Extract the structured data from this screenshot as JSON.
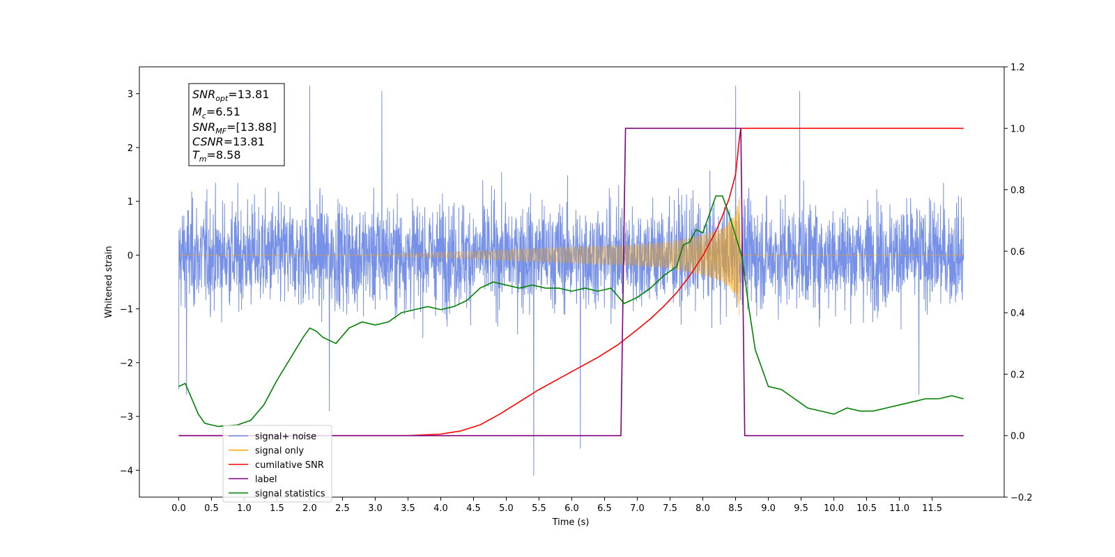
{
  "chart_data": {
    "type": "line",
    "xlabel": "Time (s)",
    "ylabel_left": "Whitened strain",
    "ylabel_right": "",
    "xlim": [
      -0.6,
      12.6
    ],
    "ylim_left": [
      -4.5,
      3.5
    ],
    "ylim_right": [
      -0.2,
      1.2
    ],
    "x_ticks": [
      "0.0",
      "0.5",
      "1.0",
      "1.5",
      "2.0",
      "2.5",
      "3.0",
      "3.5",
      "4.0",
      "4.5",
      "5.0",
      "5.5",
      "6.0",
      "6.5",
      "7.0",
      "7.5",
      "8.0",
      "8.5",
      "9.0",
      "9.5",
      "10.0",
      "10.5",
      "11.0",
      "11.5"
    ],
    "y_left_ticks": [
      "3",
      "2",
      "1",
      "0",
      "−1",
      "−2",
      "−3",
      "−4"
    ],
    "y_right_ticks": [
      "1.2",
      "1.0",
      "0.8",
      "0.6",
      "0.4",
      "0.2",
      "0.0",
      "−0.2"
    ],
    "grid": false,
    "legend_position": "lower-left",
    "colors": {
      "noise": "#6f8be6",
      "signal": "#ffa500",
      "snr": "#ff0000",
      "label": "#800080",
      "stats": "#008000"
    },
    "info_box": {
      "snr_opt_label": "SNR",
      "snr_opt_sub": "opt",
      "snr_opt_value": "=13.81",
      "mc_label": "M",
      "mc_sub": "c",
      "mc_value": "=6.51",
      "snr_mf_label": "SNR",
      "snr_mf_sub": "MF",
      "snr_mf_value": "=[13.88]",
      "csnr_label": "CSNR",
      "csnr_value": "=13.81",
      "tm_label": "T",
      "tm_sub": "m",
      "tm_value": "=8.58"
    },
    "series": [
      {
        "name": "signal+ noise",
        "axis": "left",
        "x_range": [
          0,
          11.98
        ],
        "amplitude_rms": 0.6,
        "spikes": [
          [
            0.0,
            -2.5
          ],
          [
            0.12,
            -2.6
          ],
          [
            2.0,
            3.15
          ],
          [
            2.3,
            -2.9
          ],
          [
            3.1,
            3.05
          ],
          [
            5.42,
            -4.1
          ],
          [
            6.13,
            -3.6
          ],
          [
            8.5,
            3.15
          ],
          [
            9.48,
            3.05
          ],
          [
            11.3,
            -2.6
          ]
        ]
      },
      {
        "name": "signal only",
        "axis": "left",
        "chirp_start": 2.5,
        "merger_time": 8.58,
        "envelope": [
          [
            2.5,
            0.0
          ],
          [
            4.0,
            0.05
          ],
          [
            5.0,
            0.1
          ],
          [
            6.0,
            0.15
          ],
          [
            7.0,
            0.2
          ],
          [
            7.5,
            0.25
          ],
          [
            8.0,
            0.38
          ],
          [
            8.3,
            0.5
          ],
          [
            8.5,
            0.75
          ],
          [
            8.56,
            1.2
          ],
          [
            8.58,
            0.0
          ],
          [
            12.0,
            0.0
          ]
        ]
      },
      {
        "name": "cumilative SNR",
        "axis": "right",
        "x": [
          0,
          3.5,
          4.0,
          4.3,
          4.6,
          4.9,
          5.2,
          5.5,
          5.8,
          6.1,
          6.4,
          6.7,
          7.0,
          7.2,
          7.4,
          7.6,
          7.8,
          8.0,
          8.1,
          8.2,
          8.3,
          8.4,
          8.5,
          8.56,
          8.58,
          11.98
        ],
        "y": [
          0,
          0,
          0.005,
          0.015,
          0.035,
          0.07,
          0.11,
          0.15,
          0.185,
          0.22,
          0.255,
          0.295,
          0.345,
          0.38,
          0.42,
          0.465,
          0.52,
          0.585,
          0.625,
          0.665,
          0.715,
          0.77,
          0.85,
          0.97,
          1.0,
          1.0
        ]
      },
      {
        "name": "label",
        "axis": "right",
        "x": [
          0,
          6.75,
          6.82,
          8.55,
          8.58,
          8.64,
          11.98
        ],
        "y": [
          0,
          0,
          1,
          1,
          1,
          0,
          0
        ]
      },
      {
        "name": "signal statistics",
        "axis": "right",
        "x": [
          0,
          0.1,
          0.2,
          0.3,
          0.4,
          0.6,
          0.9,
          1.1,
          1.3,
          1.5,
          1.7,
          1.9,
          2.0,
          2.1,
          2.2,
          2.4,
          2.6,
          2.8,
          3.0,
          3.2,
          3.4,
          3.6,
          3.8,
          4.0,
          4.2,
          4.4,
          4.6,
          4.8,
          5.0,
          5.2,
          5.4,
          5.6,
          5.8,
          6.0,
          6.2,
          6.4,
          6.6,
          6.8,
          6.9,
          7.0,
          7.2,
          7.4,
          7.6,
          7.7,
          7.8,
          7.9,
          8.0,
          8.1,
          8.2,
          8.3,
          8.4,
          8.5,
          8.6,
          8.7,
          8.8,
          9.0,
          9.2,
          9.4,
          9.6,
          9.8,
          10.0,
          10.2,
          10.4,
          10.6,
          10.8,
          11.0,
          11.2,
          11.4,
          11.6,
          11.8,
          11.98
        ],
        "y": [
          0.16,
          0.17,
          0.12,
          0.07,
          0.04,
          0.03,
          0.035,
          0.05,
          0.1,
          0.18,
          0.25,
          0.32,
          0.35,
          0.34,
          0.32,
          0.3,
          0.35,
          0.37,
          0.36,
          0.37,
          0.4,
          0.41,
          0.42,
          0.41,
          0.42,
          0.44,
          0.48,
          0.5,
          0.49,
          0.48,
          0.49,
          0.48,
          0.48,
          0.47,
          0.48,
          0.47,
          0.48,
          0.43,
          0.44,
          0.45,
          0.48,
          0.52,
          0.55,
          0.62,
          0.63,
          0.67,
          0.66,
          0.72,
          0.78,
          0.78,
          0.72,
          0.65,
          0.58,
          0.42,
          0.28,
          0.16,
          0.15,
          0.12,
          0.09,
          0.08,
          0.07,
          0.09,
          0.08,
          0.08,
          0.09,
          0.1,
          0.11,
          0.12,
          0.12,
          0.13,
          0.12
        ]
      }
    ],
    "legend": {
      "entries": [
        {
          "label": "signal+ noise",
          "color": "#6f8be6"
        },
        {
          "label": "signal only",
          "color": "#ffa500"
        },
        {
          "label": "cumilative SNR",
          "color": "#ff0000"
        },
        {
          "label": "label",
          "color": "#800080"
        },
        {
          "label": "signal statistics",
          "color": "#008000"
        }
      ]
    }
  }
}
